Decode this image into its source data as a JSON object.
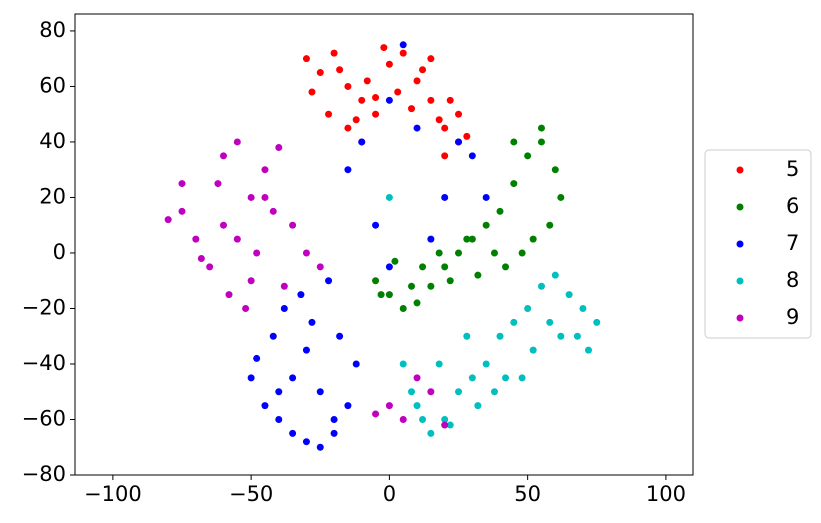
{
  "chart_data": {
    "type": "scatter",
    "xlim": [
      -113.7,
      109.8
    ],
    "ylim": [
      -80,
      86.1
    ],
    "xticks": [
      {
        "value": -100,
        "label": "−100"
      },
      {
        "value": -50,
        "label": "−50"
      },
      0,
      50,
      100
    ],
    "yticks": [
      {
        "value": -80,
        "label": "−80"
      },
      {
        "value": -60,
        "label": "−60"
      },
      {
        "value": -40,
        "label": "−40"
      },
      {
        "value": -20,
        "label": "−20"
      },
      0,
      20,
      40,
      60,
      80
    ],
    "grid": false,
    "legend": "right",
    "series": [
      {
        "name": "5",
        "color": "#ff0000",
        "x": [
          -30,
          -25,
          -20,
          -15,
          -10,
          -5,
          0,
          5,
          10,
          15,
          20,
          25,
          -28,
          -22,
          -18,
          -12,
          -8,
          -2,
          3,
          8,
          12,
          18,
          22,
          28,
          -15,
          -10,
          -5,
          15,
          20,
          25
        ],
        "values": [
          70,
          65,
          72,
          60,
          55,
          50,
          68,
          72,
          62,
          55,
          45,
          40,
          58,
          50,
          66,
          48,
          62,
          74,
          58,
          52,
          66,
          48,
          55,
          42,
          45,
          40,
          56,
          70,
          35,
          50
        ]
      },
      {
        "name": "6",
        "color": "#008000",
        "x": [
          -5,
          0,
          5,
          10,
          15,
          20,
          25,
          30,
          35,
          40,
          45,
          50,
          55,
          60,
          62,
          58,
          52,
          48,
          42,
          38,
          32,
          28,
          22,
          18,
          12,
          8,
          2,
          -3,
          55,
          45
        ],
        "values": [
          -10,
          -15,
          -20,
          -18,
          -12,
          -5,
          0,
          5,
          10,
          15,
          25,
          35,
          40,
          30,
          20,
          10,
          5,
          0,
          -5,
          0,
          -8,
          5,
          -10,
          0,
          -5,
          -12,
          -3,
          -15,
          45,
          40
        ]
      },
      {
        "name": "7",
        "color": "#0000ff",
        "x": [
          -50,
          -45,
          -40,
          -35,
          -30,
          -25,
          -20,
          -15,
          -12,
          -48,
          -42,
          -38,
          -32,
          -28,
          -22,
          -18,
          -35,
          -25,
          -30,
          -40,
          -20,
          -10,
          -15,
          0,
          5,
          10,
          20,
          30,
          -5,
          15,
          25,
          0,
          35
        ],
        "values": [
          -45,
          -55,
          -60,
          -65,
          -68,
          -70,
          -65,
          -55,
          -40,
          -38,
          -30,
          -20,
          -15,
          -25,
          -10,
          -30,
          -45,
          -50,
          -35,
          -50,
          -60,
          40,
          30,
          55,
          75,
          45,
          20,
          35,
          10,
          5,
          40,
          -5,
          20
        ]
      },
      {
        "name": "8",
        "color": "#00bfbf",
        "x": [
          5,
          10,
          15,
          20,
          25,
          30,
          35,
          40,
          45,
          50,
          55,
          60,
          65,
          70,
          75,
          72,
          62,
          52,
          42,
          32,
          22,
          12,
          8,
          18,
          28,
          38,
          48,
          58,
          68,
          0
        ],
        "values": [
          -40,
          -55,
          -65,
          -60,
          -50,
          -45,
          -40,
          -30,
          -25,
          -20,
          -12,
          -8,
          -15,
          -20,
          -25,
          -35,
          -30,
          -35,
          -45,
          -55,
          -62,
          -60,
          -50,
          -40,
          -30,
          -50,
          -45,
          -25,
          -30,
          20
        ]
      },
      {
        "name": "9",
        "color": "#bf00bf",
        "x": [
          -80,
          -75,
          -70,
          -65,
          -60,
          -55,
          -50,
          -45,
          -40,
          -35,
          -30,
          -25,
          -75,
          -68,
          -62,
          -58,
          -52,
          -48,
          -42,
          -38,
          -55,
          -60,
          -50,
          -45,
          0,
          5,
          10,
          15,
          20,
          -5
        ],
        "values": [
          12,
          25,
          5,
          -5,
          35,
          40,
          20,
          30,
          38,
          10,
          0,
          -5,
          15,
          -2,
          25,
          -15,
          -20,
          0,
          15,
          -12,
          5,
          10,
          -10,
          20,
          -55,
          -60,
          -45,
          -50,
          -62,
          -58
        ]
      }
    ]
  }
}
